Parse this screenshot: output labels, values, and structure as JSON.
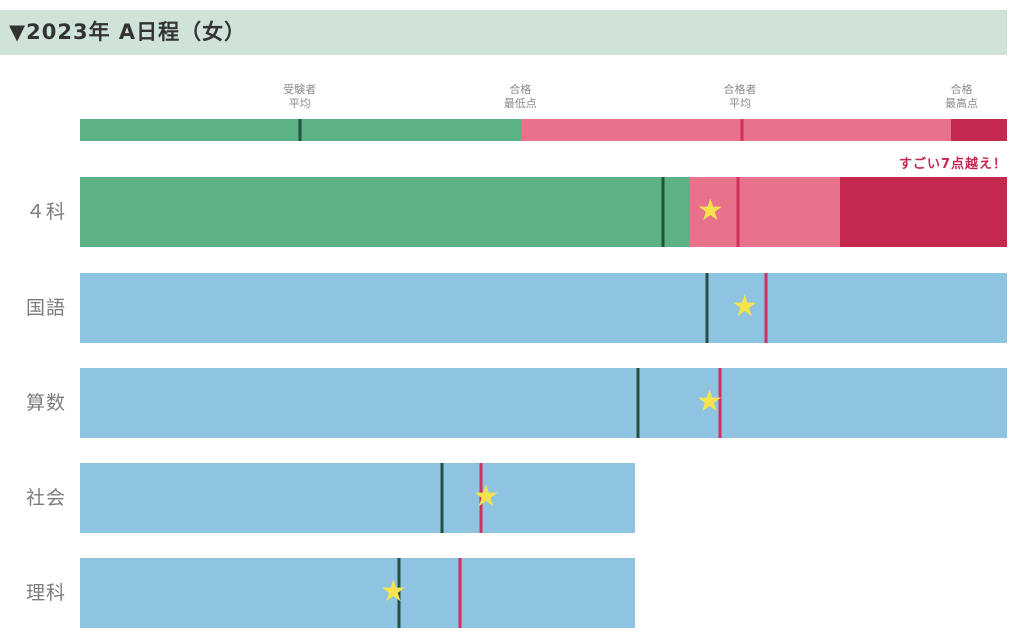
{
  "header": {
    "title": "▼2023年 A日程（女）"
  },
  "annotation": {
    "text": "すごい7点越え！"
  },
  "colors": {
    "header_bg": "#cfe3d8",
    "header_text": "#333333",
    "green": "#5cb284",
    "pink": "#e8718c",
    "crimson": "#c5294f",
    "blue": "#8ec3e2",
    "examinee_avg_line": "#26513e",
    "passers_avg_line": "#d13060",
    "star": "#f5e44e",
    "row_label_text": "#7c7c7c",
    "legend_label_text": "#8a8a8a",
    "annotation_text": "#c5294f"
  },
  "chart_data": {
    "type": "bar",
    "orientation": "horizontal",
    "title": "2023年 A日程（女）",
    "axis": {
      "labels_shown": false,
      "gridlines": false,
      "scale": "percent-of-bar-span",
      "range_pct": [
        0,
        100
      ]
    },
    "legend": {
      "position": "top",
      "labels": [
        {
          "text": "受験者\n平均",
          "pct": 23.7,
          "marker": "dark-green-line"
        },
        {
          "text": "合格\n最低点",
          "pct": 47.5,
          "marker": "green-pink-boundary"
        },
        {
          "text": "合格者\n平均",
          "pct": 71.2,
          "marker": "crimson-line"
        },
        {
          "text": "合格\n最高点",
          "pct": 95.1,
          "marker": "pink-crimson-boundary"
        }
      ],
      "bar": {
        "green_end_pct": 47.6,
        "pink_end_pct": 94.0,
        "end_pct": 100,
        "examinee_avg_pct": 23.7,
        "passers_avg_pct": 71.4
      }
    },
    "rows": [
      {
        "label": "４科",
        "style": "banded",
        "end_pct": 100,
        "green_end_pct": 65.8,
        "pink_end_pct": 82.0,
        "examinee_avg_pct": 62.9,
        "passers_avg_pct": 71.0,
        "star_pct": 68.0
      },
      {
        "label": "国語",
        "style": "plain",
        "end_pct": 100,
        "examinee_avg_pct": 67.6,
        "passers_avg_pct": 74.0,
        "star_pct": 71.7
      },
      {
        "label": "算数",
        "style": "plain",
        "end_pct": 100,
        "examinee_avg_pct": 60.2,
        "passers_avg_pct": 69.0,
        "star_pct": 67.9
      },
      {
        "label": "社会",
        "style": "plain",
        "end_pct": 59.9,
        "examinee_avg_pct": 39.1,
        "passers_avg_pct": 43.3,
        "star_pct": 43.8
      },
      {
        "label": "理科",
        "style": "plain",
        "end_pct": 59.9,
        "examinee_avg_pct": 34.4,
        "passers_avg_pct": 41.0,
        "star_pct": 33.8
      }
    ]
  }
}
